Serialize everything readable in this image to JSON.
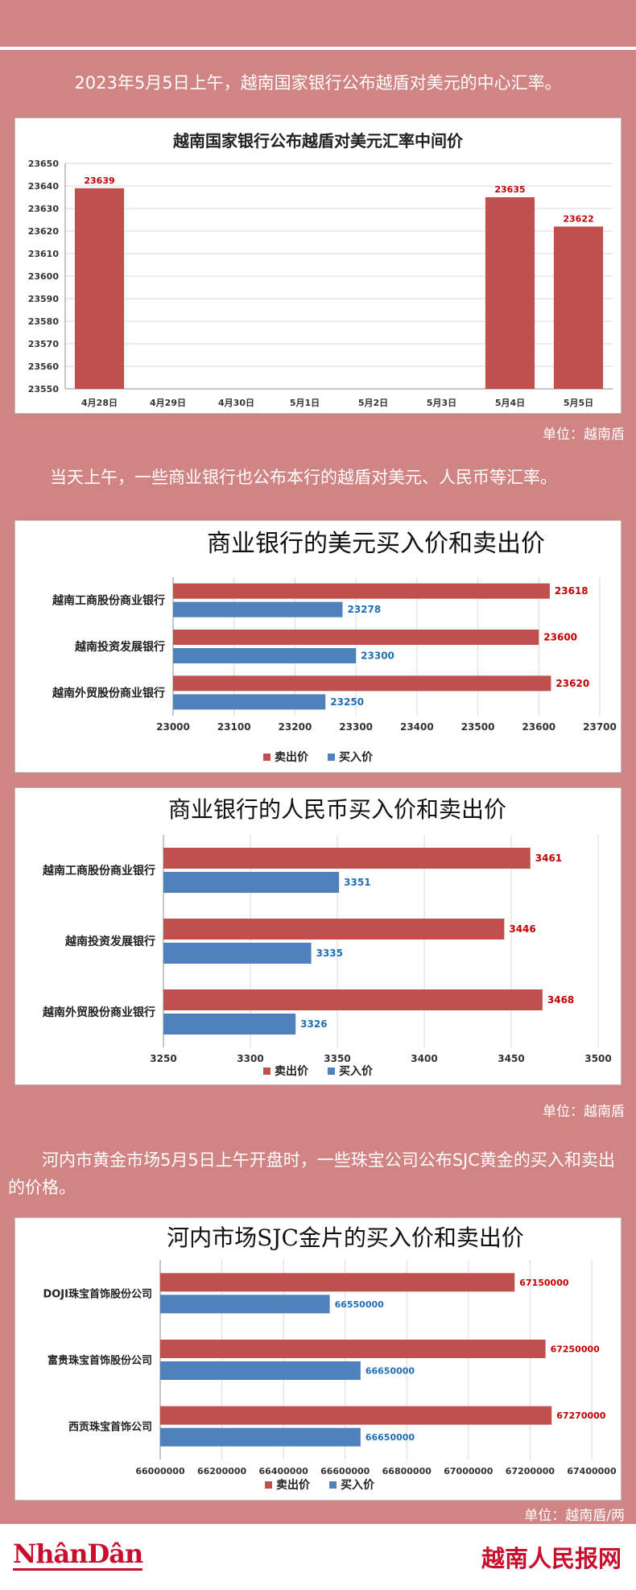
{
  "intro_text": "2023年5月5日上午，越南国家银行公布越盾对美元的中心汇率。",
  "unit_1": "单位：越南盾",
  "para_2": "当天上午，一些商业银行也公布本行的越盾对美元、人民币等汇率。",
  "unit_2": "单位：越南盾",
  "para_3": "河内市黄金市场5月5日上午开盘时，一些珠宝公司公布SJC黄金的买入和卖出的价格。",
  "unit_3": "单位：越南盾/两",
  "footer": {
    "logo_left": "NhânDân",
    "logo_right": "越南人民报网"
  },
  "colors": {
    "sell": "#c0504d",
    "buy": "#4f81bd",
    "background": "#d18484",
    "sell_label": "#c00000",
    "buy_label": "#1f6eb5"
  },
  "chart_data": [
    {
      "type": "bar",
      "title": "越南国家银行公布越盾对美元汇率中间价",
      "categories": [
        "4月28日",
        "4月29日",
        "4月30日",
        "5月1日",
        "5月2日",
        "5月3日",
        "5月4日",
        "5月5日"
      ],
      "values": [
        23639,
        null,
        null,
        null,
        null,
        null,
        23635,
        23622
      ],
      "data_labels": [
        "23639",
        "",
        "",
        "",
        "",
        "",
        "23635",
        "23622"
      ],
      "ylim": [
        23550,
        23650
      ],
      "yticks": [
        "23550",
        "23560",
        "23570",
        "23580",
        "23590",
        "23600",
        "23610",
        "23620",
        "23630",
        "23640",
        "23650"
      ],
      "grid": true
    },
    {
      "type": "bar",
      "orientation": "horizontal",
      "title": "商业银行的美元买入价和卖出价",
      "categories": [
        "越南工商股份商业银行",
        "越南投资发展银行",
        "越南外贸股份商业银行"
      ],
      "series": [
        {
          "name": "卖出价",
          "values": [
            23618,
            23600,
            23620
          ]
        },
        {
          "name": "买入价",
          "values": [
            23278,
            23300,
            23250
          ]
        }
      ],
      "xlim": [
        23000,
        23700
      ],
      "xticks": [
        "23000",
        "23100",
        "23200",
        "23300",
        "23400",
        "23500",
        "23600",
        "23700"
      ],
      "legend": "bottom",
      "grid": true
    },
    {
      "type": "bar",
      "orientation": "horizontal",
      "title": "商业银行的人民币买入价和卖出价",
      "categories": [
        "越南工商股份商业银行",
        "越南投资发展银行",
        "越南外贸股份商业银行"
      ],
      "series": [
        {
          "name": "卖出价",
          "values": [
            3461,
            3446,
            3468
          ]
        },
        {
          "name": "买入价",
          "values": [
            3351,
            3335,
            3326
          ]
        }
      ],
      "xlim": [
        3250,
        3500
      ],
      "xticks": [
        "3250",
        "3300",
        "3350",
        "3400",
        "3450",
        "3500"
      ],
      "legend": "bottom",
      "grid": true
    },
    {
      "type": "bar",
      "orientation": "horizontal",
      "title": "河内市场SJC金片的买入价和卖出价",
      "categories": [
        "DOJI珠宝首饰股份公司",
        "富贵珠宝首饰股份公司",
        "西贡珠宝首饰公司"
      ],
      "series": [
        {
          "name": "卖出价",
          "values": [
            67150000,
            67250000,
            67270000
          ]
        },
        {
          "name": "买入价",
          "values": [
            66550000,
            66650000,
            66650000
          ]
        }
      ],
      "xlim": [
        66000000,
        67400000
      ],
      "xticks": [
        "66000000",
        "66200000",
        "66400000",
        "66600000",
        "66800000",
        "67000000",
        "67200000",
        "67400000"
      ],
      "legend": "bottom",
      "grid": true
    }
  ]
}
